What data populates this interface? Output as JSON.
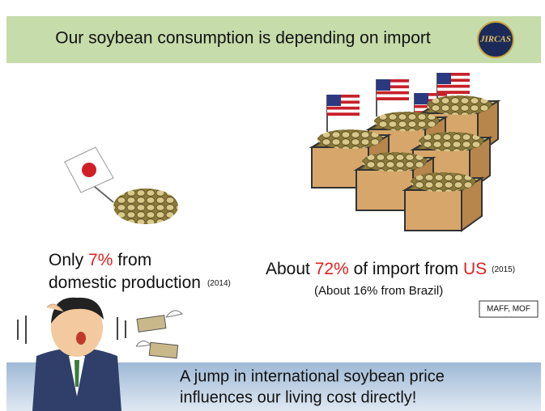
{
  "header": {
    "title": "Our soybean consumption is depending on import",
    "logo": "JIRCAS"
  },
  "domestic": {
    "prefix": "Only ",
    "share": "7%",
    "suffix": " from",
    "line2": "domestic production",
    "year": "(2014)"
  },
  "import": {
    "prefix": "About ",
    "share": "72%",
    "middle": " of import from ",
    "country": "US",
    "year": "(2015)",
    "note": "(About 16% from Brazil)"
  },
  "source": "MAFF, MOF",
  "footer": {
    "line1": "A jump in international soybean price",
    "line2": "influences our living cost directly!"
  }
}
